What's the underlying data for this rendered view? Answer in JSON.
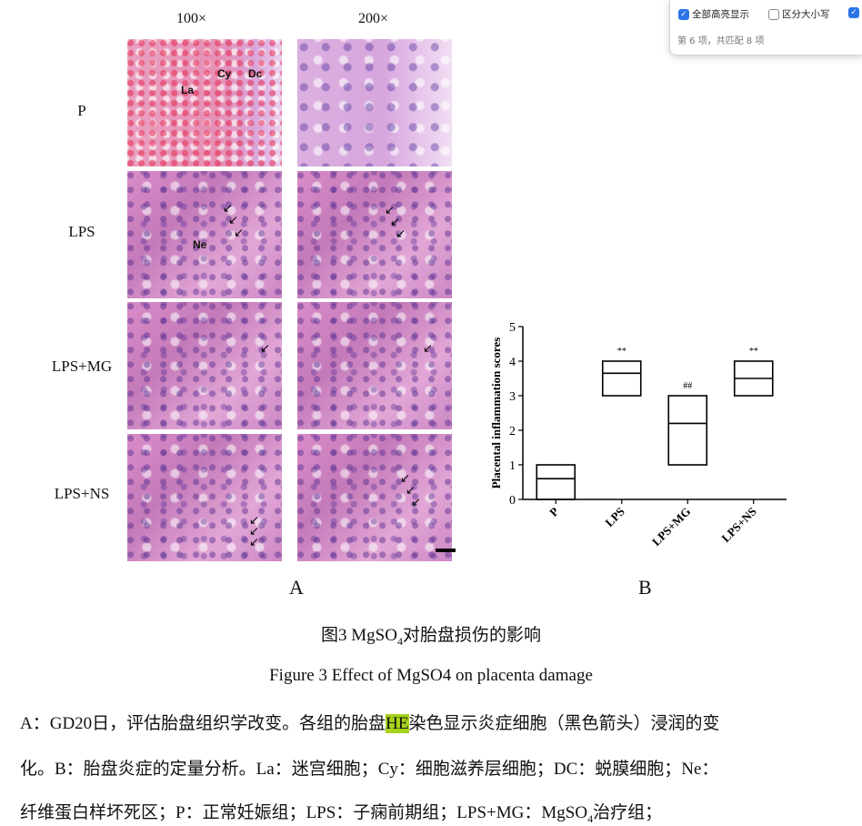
{
  "find_bar": {
    "option_highlight_all": "全部高亮显示",
    "option_match_case": "区分大小写",
    "status": "第 6 项，共匹配 8 项",
    "highlight_all_checked": true,
    "match_case_checked": false,
    "third_option_checked": true,
    "accent_color": "#2a73e8"
  },
  "figure": {
    "col_headers": [
      "100×",
      "200×"
    ],
    "row_labels": [
      "P",
      "LPS",
      "LPS+MG",
      "LPS+NS"
    ],
    "tile_labels": {
      "la": "La",
      "cy": "Cy",
      "dc": "Dc",
      "ne": "Ne"
    },
    "panel_a": "A",
    "panel_b": "B"
  },
  "chart_data": {
    "type": "box",
    "ylabel": "Placental inflammation scores",
    "xlabel": "",
    "ylim": [
      0,
      5
    ],
    "yticks": [
      0,
      1,
      2,
      3,
      4,
      5
    ],
    "categories": [
      "P",
      "LPS",
      "LPS+MG",
      "LPS+NS"
    ],
    "boxes": [
      {
        "category": "P",
        "min": 0,
        "median": 0.6,
        "max": 1,
        "annotation": ""
      },
      {
        "category": "LPS",
        "min": 3,
        "median": 3.65,
        "max": 4,
        "annotation": "**"
      },
      {
        "category": "LPS+MG",
        "min": 1,
        "median": 2.2,
        "max": 3,
        "annotation": "##"
      },
      {
        "category": "LPS+NS",
        "min": 3,
        "median": 3.5,
        "max": 4,
        "annotation": "**"
      }
    ],
    "grid": false
  },
  "caption": {
    "cn_prefix": "图3 MgSO",
    "cn_sub": "4",
    "cn_suffix": "对胎盘损伤的影响",
    "en": "Figure 3 Effect of MgSO4 on placenta damage"
  },
  "body": {
    "line1_pre": "A：GD20日，评估胎盘组织学改变。各组的胎盘",
    "line1_hl": "HE",
    "line1_post": "染色显示炎症细胞（黑色箭头）浸润的变",
    "line2": "化。B：胎盘炎症的定量分析。La：迷宫细胞；Cy：细胞滋养层细胞；DC：蜕膜细胞；Ne：",
    "line3_pre": "纤维蛋白样坏死区；P：正常妊娠组；LPS：子痫前期组；LPS+MG：MgSO",
    "line3_sub": "4",
    "line3_post": "治疗组；",
    "highlight_color": "#a6d21b"
  }
}
